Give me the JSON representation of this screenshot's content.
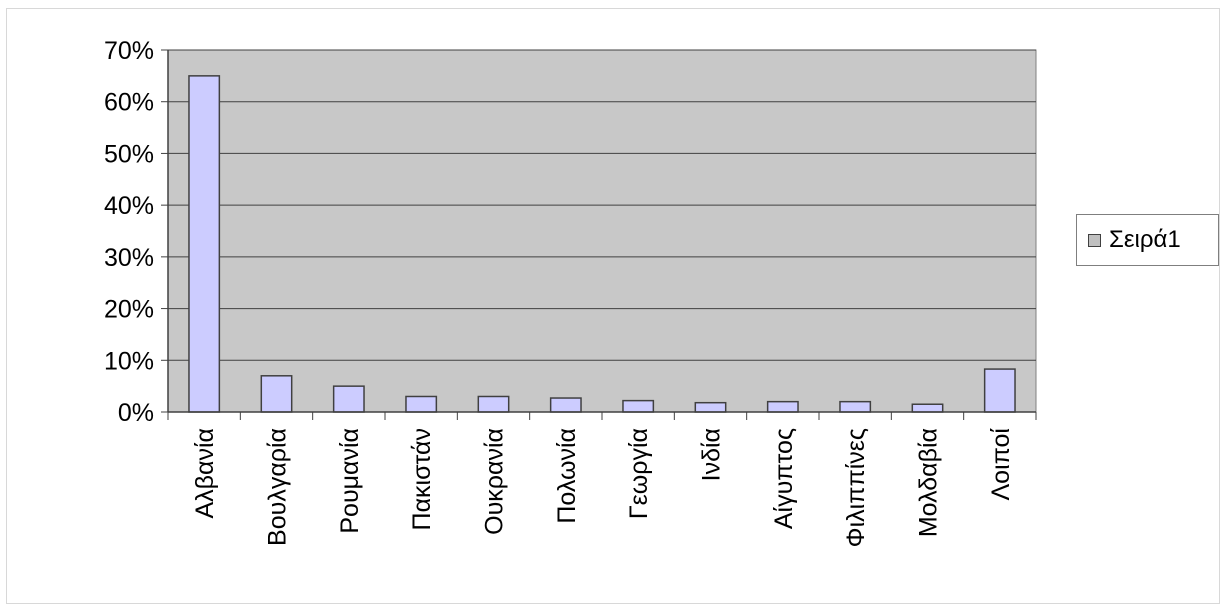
{
  "chart_data": {
    "type": "bar",
    "title": "",
    "xlabel": "",
    "ylabel": "",
    "categories": [
      "Αλβανία",
      "Βουλγαρία",
      "Ρουμανία",
      "Πακιστάν",
      "Ουκρανία",
      "Πολωνία",
      "Γεωργία",
      "Ινδία",
      "Αίγυπτος",
      "Φιλιππίνες",
      "Μολδαβία",
      "Λοιποί"
    ],
    "series": [
      {
        "name": "Σειρά1",
        "values": [
          0.65,
          0.07,
          0.05,
          0.03,
          0.03,
          0.027,
          0.022,
          0.018,
          0.02,
          0.02,
          0.015,
          0.083
        ]
      }
    ],
    "ylim": [
      0,
      0.7
    ],
    "yticks": [
      0,
      0.1,
      0.2,
      0.3,
      0.4,
      0.5,
      0.6,
      0.7
    ],
    "ytick_labels": [
      "0%",
      "10%",
      "20%",
      "30%",
      "40%",
      "50%",
      "60%",
      "70%"
    ],
    "y_format": "percent",
    "grid": true,
    "legend_position": "right",
    "colors": {
      "plot_background": "#c8c8c8",
      "bar_fill": "#ccccff",
      "bar_stroke": "#404040",
      "gridline": "#404040",
      "legend_swatch": "#c0c0c0"
    }
  }
}
